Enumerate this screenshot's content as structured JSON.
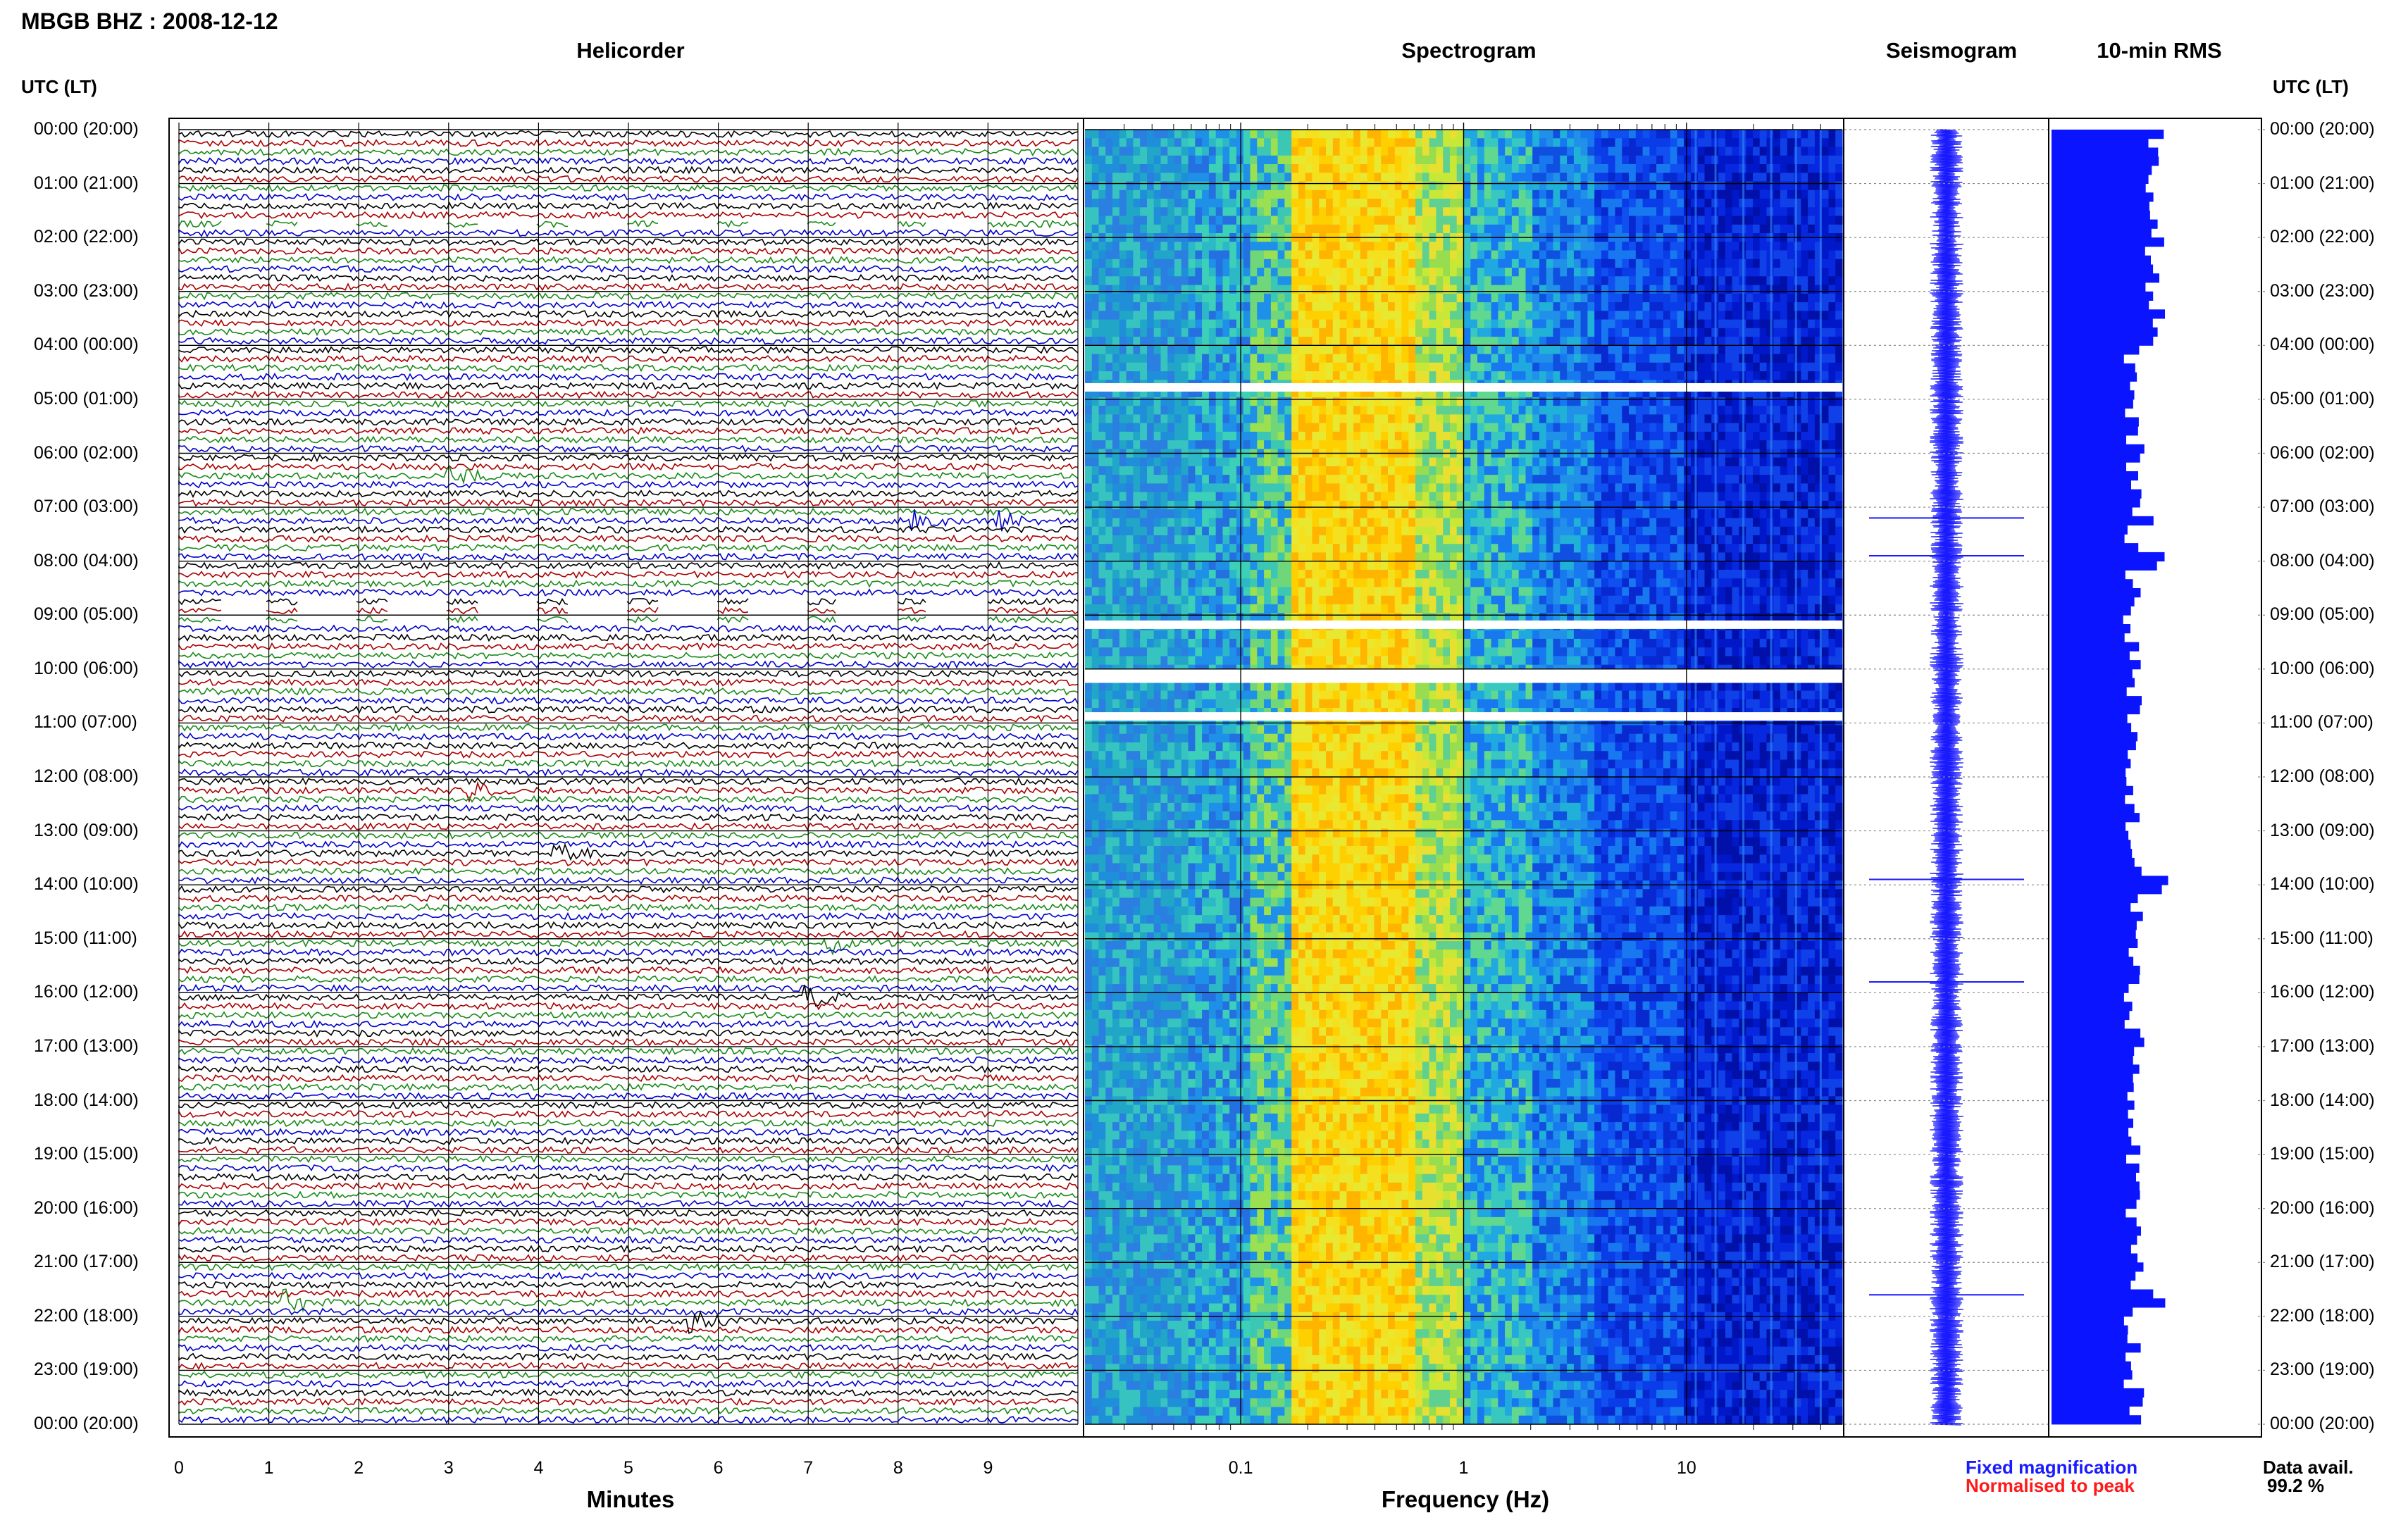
{
  "station_title": "MBGB BHZ : 2008-12-12",
  "panels": {
    "helicorder": "Helicorder",
    "spectrogram": "Spectrogram",
    "seismogram": "Seismogram",
    "rms": "10-min RMS"
  },
  "utc_header": "UTC (LT)",
  "legend": {
    "fixed": "Fixed magnification",
    "normalised": "Normalised to peak"
  },
  "data_availability": {
    "label": "Data avail.",
    "value": "99.2 %"
  },
  "colors": {
    "trace_cycle": [
      "#000000",
      "#aa0000",
      "#1a8a1a",
      "#0000cc"
    ],
    "seismogram": "#1a1aff",
    "rms": "#0a14ff",
    "spectrogram_bg": "#00008c",
    "gap": "#ffffff"
  },
  "chart_data": [
    {
      "type": "line",
      "title": "Helicorder",
      "xlabel": "Minutes",
      "xlim": [
        0,
        10
      ],
      "x_ticks": [
        "0",
        "1",
        "2",
        "3",
        "4",
        "5",
        "6",
        "7",
        "8",
        "9"
      ],
      "rows_per_hour": 6,
      "hours": 24,
      "hour_labels": [
        "00:00 (20:00)",
        "01:00 (21:00)",
        "02:00 (22:00)",
        "03:00 (23:00)",
        "04:00 (00:00)",
        "05:00 (01:00)",
        "06:00 (02:00)",
        "07:00 (03:00)",
        "08:00 (04:00)",
        "09:00 (05:00)",
        "10:00 (06:00)",
        "11:00 (07:00)",
        "12:00 (08:00)",
        "13:00 (09:00)",
        "14:00 (10:00)",
        "15:00 (11:00)",
        "16:00 (12:00)",
        "17:00 (13:00)",
        "18:00 (14:00)",
        "19:00 (15:00)",
        "20:00 (16:00)",
        "21:00 (17:00)",
        "22:00 (18:00)",
        "23:00 (19:00)",
        "00:00 (20:00)"
      ],
      "events": [
        {
          "row": 38,
          "minute": 3.0
        },
        {
          "row": 43,
          "minute": 8.2
        },
        {
          "row": 43,
          "minute": 9.1
        },
        {
          "row": 73,
          "minute": 3.2
        },
        {
          "row": 80,
          "minute": 4.2
        },
        {
          "row": 90,
          "minute": 7.2
        },
        {
          "row": 96,
          "minute": 7.0
        },
        {
          "row": 130,
          "minute": 1.2
        },
        {
          "row": 132,
          "minute": 5.7
        }
      ],
      "gaps_rows": [
        10,
        52,
        53,
        54
      ]
    },
    {
      "type": "heatmap",
      "title": "Spectrogram",
      "xlabel": "Frequency (Hz)",
      "x_scale": "log",
      "xlim": [
        0.02,
        50
      ],
      "x_ticks": [
        "0.1",
        "1",
        "10"
      ],
      "peak_band_hz": [
        0.18,
        0.5
      ],
      "gaps_hours": [
        4.7,
        9.1,
        10.0,
        10.1,
        10.8
      ]
    },
    {
      "type": "line",
      "title": "Seismogram",
      "spikes_hours": [
        7.2,
        7.9,
        13.9,
        15.8,
        21.6
      ]
    },
    {
      "type": "bar",
      "title": "10-min RMS",
      "values_hint": "relative bar length per 10-min window",
      "peak_hours": [
        7.2,
        7.9,
        13.9,
        21.6
      ]
    }
  ]
}
